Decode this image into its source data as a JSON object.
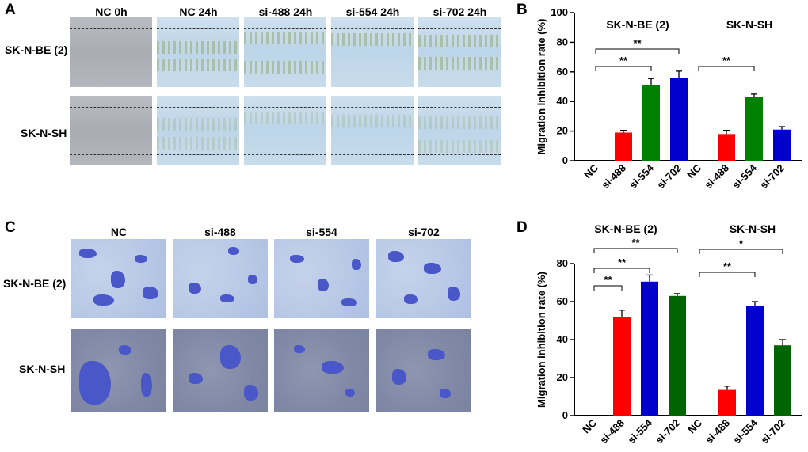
{
  "panels": {
    "A": {
      "label": "A",
      "columns": [
        "NC 0h",
        "NC  24h",
        "si-488  24h",
        "si-554  24h",
        "si-702  24h"
      ],
      "rows": [
        "SK-N-BE (2)",
        "SK-N-SH"
      ]
    },
    "C": {
      "label": "C",
      "columns": [
        "NC",
        "si-488",
        "si-554",
        "si-702"
      ],
      "rows": [
        "SK-N-BE (2)",
        "SK-N-SH"
      ]
    }
  },
  "chart_data": [
    {
      "panel": "B",
      "type": "bar",
      "ylabel": "Migration inhibition rate (%)",
      "ylim": [
        0,
        100
      ],
      "yticks": [
        0,
        20,
        40,
        60,
        80,
        100
      ],
      "groups": [
        {
          "name": "SK-N-BE (2)",
          "categories": [
            "NC",
            "si-488",
            "si-554",
            "si-702"
          ],
          "values": [
            0,
            19,
            51,
            56
          ],
          "errors": [
            0,
            1.5,
            4.5,
            4.5
          ],
          "colors": [
            "#ff0000",
            "#ff0000",
            "#008000",
            "#0000cc"
          ],
          "significance": [
            {
              "from": "NC",
              "to": "si-554",
              "label": "**"
            },
            {
              "from": "NC",
              "to": "si-702",
              "label": "**"
            }
          ]
        },
        {
          "name": "SK-N-SH",
          "categories": [
            "NC",
            "si-488",
            "si-554",
            "si-702"
          ],
          "values": [
            0,
            18,
            43,
            21
          ],
          "errors": [
            0,
            2.5,
            2,
            2
          ],
          "colors": [
            "#ff0000",
            "#ff0000",
            "#008000",
            "#0000cc"
          ],
          "significance": [
            {
              "from": "NC",
              "to": "si-554",
              "label": "**"
            }
          ]
        }
      ]
    },
    {
      "panel": "D",
      "type": "bar",
      "ylabel": "Migration inhibition rate (%)",
      "ylim": [
        0,
        80
      ],
      "yticks": [
        0,
        20,
        40,
        60,
        80
      ],
      "groups": [
        {
          "name": "SK-N-BE (2)",
          "categories": [
            "NC",
            "si-488",
            "si-554",
            "si-702"
          ],
          "values": [
            0,
            52,
            70.5,
            63
          ],
          "errors": [
            0,
            3.5,
            3.5,
            1.2
          ],
          "colors": [
            "#ff0000",
            "#ff0000",
            "#0000cc",
            "#006400"
          ],
          "significance": [
            {
              "from": "NC",
              "to": "si-488",
              "label": "**"
            },
            {
              "from": "NC",
              "to": "si-554",
              "label": "**"
            },
            {
              "from": "NC",
              "to": "si-702",
              "label": "**"
            }
          ]
        },
        {
          "name": "SK-N-SH",
          "categories": [
            "NC",
            "si-488",
            "si-554",
            "si-702"
          ],
          "values": [
            0,
            13.5,
            57.5,
            37
          ],
          "errors": [
            0,
            2,
            2.5,
            3
          ],
          "colors": [
            "#ff0000",
            "#ff0000",
            "#0000cc",
            "#006400"
          ],
          "significance": [
            {
              "from": "NC",
              "to": "si-554",
              "label": "**"
            },
            {
              "from": "NC",
              "to": "si-702",
              "label": "*"
            }
          ]
        }
      ]
    }
  ]
}
